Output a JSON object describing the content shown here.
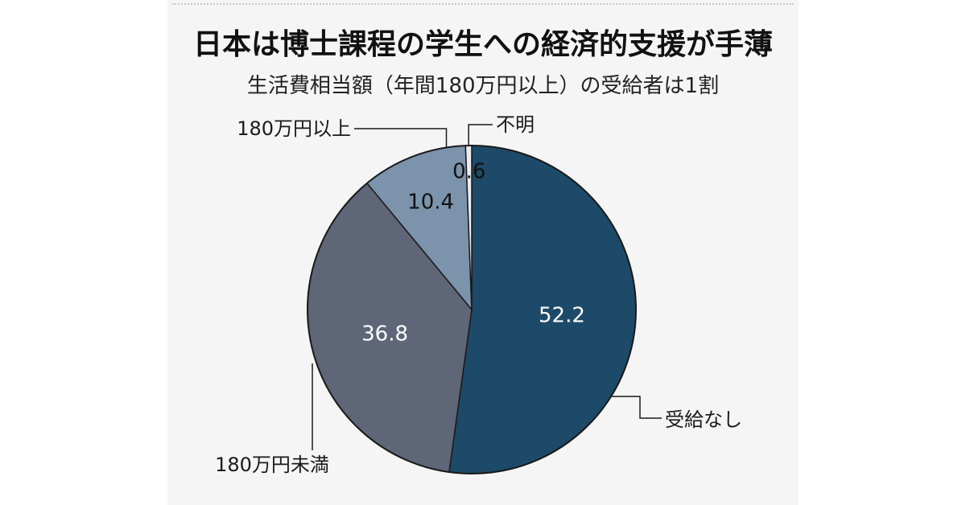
{
  "header": {
    "title": "日本は博士課程の学生への経済的支援が手薄",
    "subtitle": "生活費相当額（年間180万円以上）の受給者は1割"
  },
  "chart_data": {
    "type": "pie",
    "title": "日本は博士課程の学生への経済的支援が手薄",
    "subtitle": "生活費相当額（年間180万円以上）の受給者は1割",
    "start": "12 o'clock",
    "direction": "clockwise",
    "slices": [
      {
        "label": "受給なし",
        "value": 52.2,
        "value_label": "52.2",
        "color": "#1d4a68",
        "label_color": "#ffffff"
      },
      {
        "label": "180万円未満",
        "value": 36.8,
        "value_label": "36.8",
        "color": "#5e6677",
        "label_color": "#ffffff"
      },
      {
        "label": "180万円以上",
        "value": 10.4,
        "value_label": "10.4",
        "color": "#7b93ab",
        "label_color": "#111111"
      },
      {
        "label": "不明",
        "value": 0.6,
        "value_label": "0.6",
        "color": "#e9ecef",
        "label_color": "#111111"
      }
    ]
  }
}
